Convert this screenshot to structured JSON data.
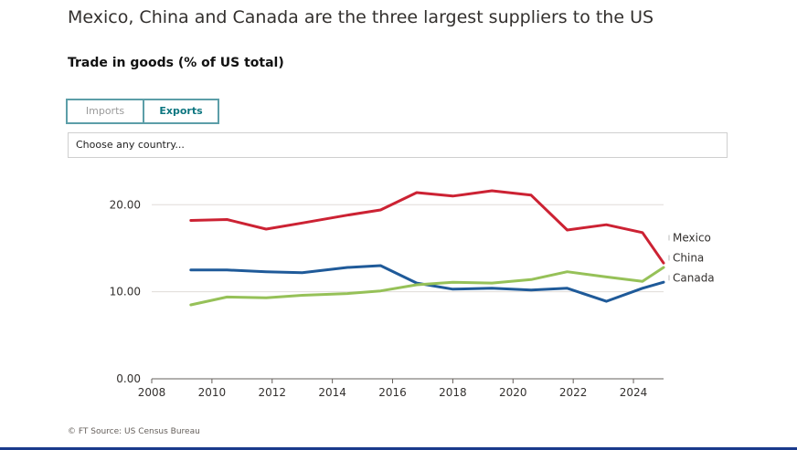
{
  "header": {
    "title": "Mexico, China and Canada are the three largest suppliers to the US",
    "subtitle": "Trade in goods (% of US total)"
  },
  "toggle": {
    "imports_label": "Imports",
    "exports_label": "Exports",
    "selected": "Exports"
  },
  "country_select": {
    "placeholder": "Choose any country..."
  },
  "footer": {
    "source": "© FT Source: US Census Bureau"
  },
  "colors": {
    "mexico": "#cc2233",
    "china": "#1f5a99",
    "canada": "#96c158",
    "toggle_border": "#5c9ea8",
    "toggle_active_text": "#0d7680"
  },
  "chart_data": {
    "type": "line",
    "xlim": [
      2008,
      2025
    ],
    "ylim": [
      0,
      21.5
    ],
    "yticks": [
      0,
      10,
      20
    ],
    "ytick_labels": [
      "0.00",
      "10.00",
      "20.00"
    ],
    "xticks": [
      2008,
      2010,
      2012,
      2014,
      2016,
      2018,
      2020,
      2022,
      2024
    ],
    "xtick_labels": [
      "2008",
      "2010",
      "2012",
      "2014",
      "2016",
      "2018",
      "2020",
      "2022",
      "2024"
    ],
    "grid": true,
    "legend": "line-end labels",
    "x": [
      2009.3,
      2010.5,
      2011.8,
      2013,
      2014.5,
      2015.6,
      2016.8,
      2018,
      2019.3,
      2020.6,
      2021.8,
      2023.1,
      2024.3,
      2025
    ],
    "series": [
      {
        "name": "Mexico",
        "color": "#cc2233",
        "values": [
          18.2,
          18.3,
          17.2,
          17.9,
          18.8,
          19.4,
          21.4,
          21,
          21.6,
          21.1,
          17.1,
          17.7,
          16.8,
          13.3
        ]
      },
      {
        "name": "China",
        "color": "#1f5a99",
        "values": [
          12.5,
          12.5,
          12.3,
          12.2,
          12.8,
          13,
          11,
          10.3,
          10.4,
          10.2,
          10.4,
          8.9,
          10.4,
          11.1
        ]
      },
      {
        "name": "Canada",
        "color": "#96c158",
        "values": [
          8.5,
          9.4,
          9.3,
          9.6,
          9.8,
          10.1,
          10.8,
          11.1,
          11,
          11.4,
          12.3,
          11.7,
          11.2,
          12.8
        ]
      }
    ]
  }
}
